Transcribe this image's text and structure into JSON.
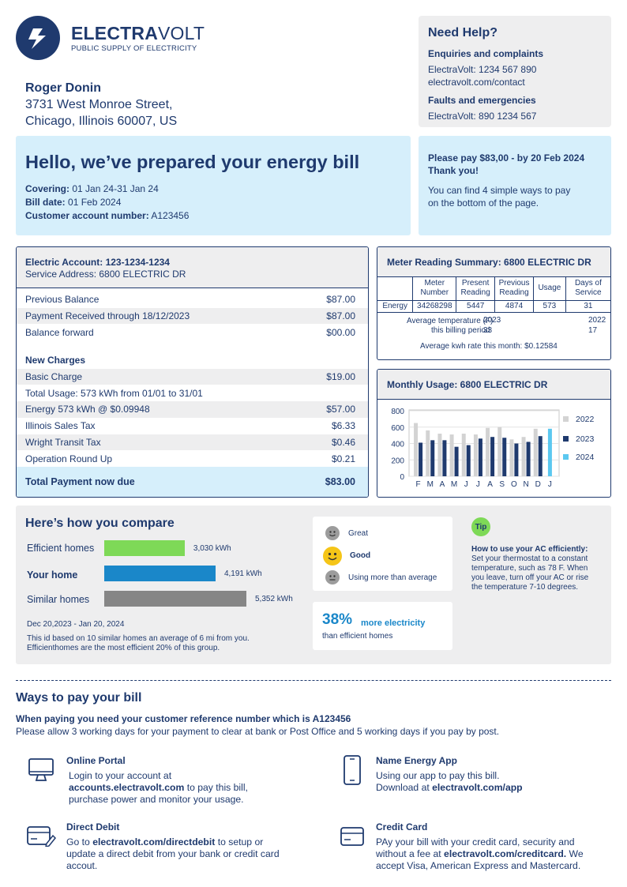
{
  "brand": {
    "name_bold": "ELECTRA",
    "name_light": "VOLT",
    "tagline": "PUBLIC SUPPLY OF ELECTRICITY"
  },
  "help": {
    "title": "Need Help?",
    "enq_heading": "Enquiries and complaints",
    "enq_phone": "ElectraVolt: 1234 567 890",
    "enq_web": "electravolt.com/contact",
    "faults_heading": "Faults and emergencies",
    "faults_phone": "ElectraVolt: 890 1234 567"
  },
  "customer": {
    "name": "Roger Donin",
    "street": "3731 West Monroe Street,",
    "city": "Chicago, Illinois 60007, US"
  },
  "hello": {
    "title": "Hello, we’ve prepared your energy bill",
    "covering_label": "Covering:",
    "covering": "01 Jan 24-31 Jan 24",
    "billdate_label": "Bill date:",
    "billdate": "01 Feb 2024",
    "account_label": "Customer account number:",
    "account": "A123456"
  },
  "pay": {
    "line1": "Please pay $83,00 - by 20 Feb 2024",
    "line2": "Thank you!",
    "line3": "You can find 4 simple ways to pay",
    "line4": "on the bottom of the page."
  },
  "account": {
    "title": "Electric Account: 123-1234-1234",
    "service": "Service Address: 6800 ELECTRIC DR",
    "rows": [
      {
        "label": "Previous Balance",
        "value": "$87.00"
      },
      {
        "label": "Payment Received through  18/12/2023",
        "value": "$87.00"
      },
      {
        "label": "Balance forward",
        "value": "$00.00"
      }
    ],
    "new_charges": "New Charges",
    "charges": [
      {
        "label": "Basic Charge",
        "value": "$19.00"
      },
      {
        "label": "Total Usage: 573 kWh from 01/01 to 31/01",
        "value": ""
      },
      {
        "label": "Energy 573 kWh @ $0.09948",
        "value": "$57.00"
      },
      {
        "label": "Illinois Sales Tax",
        "value": "$6.33"
      },
      {
        "label": "Wright Transit Tax",
        "value": "$0.46"
      },
      {
        "label": "Operation Round Up",
        "value": "$0.21"
      }
    ],
    "total_label": "Total Payment now due",
    "total_value": "$83.00"
  },
  "meter": {
    "title": "Meter Reading Summary: 6800 ELECTRIC DR",
    "headers": [
      "Meter Number",
      "Present Reading",
      "Previous Reading",
      "Usage",
      "Days of Service"
    ],
    "row_label": "Energy",
    "row": [
      "34268298",
      "5447",
      "4874",
      "573",
      "31"
    ],
    "temp_label": "Average temperature (F)",
    "period_label": "this billing period",
    "y1": "2023",
    "y1_temp": "33",
    "y2": "2022",
    "y2_temp": "17",
    "rate": "Average kwh rate this month: $0.12584"
  },
  "monthly": {
    "title": "Monthly Usage: 6800 ELECTRIC DR"
  },
  "chart_data": {
    "type": "bar",
    "categories": [
      "F",
      "M",
      "A",
      "M",
      "J",
      "J",
      "A",
      "S",
      "O",
      "N",
      "D",
      "J"
    ],
    "yticks": [
      "800",
      "600",
      "400",
      "200",
      "0"
    ],
    "ylim": [
      0,
      800
    ],
    "series": [
      {
        "name": "2022",
        "color": "#d3d3d3",
        "values": [
          650,
          560,
          520,
          510,
          520,
          510,
          590,
          600,
          450,
          480,
          580,
          0
        ]
      },
      {
        "name": "2023",
        "color": "#1f3a6e",
        "values": [
          410,
          440,
          440,
          360,
          380,
          460,
          480,
          470,
          400,
          420,
          490,
          0
        ]
      },
      {
        "name": "2024",
        "color": "#5bc8f0",
        "values": [
          0,
          0,
          0,
          0,
          0,
          0,
          0,
          0,
          0,
          0,
          0,
          580
        ]
      }
    ]
  },
  "compare": {
    "title": "Here’s how you compare",
    "rows": [
      {
        "label": "Efficient homes",
        "value": "3,030 kWh",
        "kwh": 3030,
        "color": "#7ed957"
      },
      {
        "label": "Your home",
        "value": "4,191 kWh",
        "kwh": 4191,
        "color": "#1a87c9"
      },
      {
        "label": "Similar homes",
        "value": "5,352 kWh",
        "kwh": 5352,
        "color": "#868686"
      }
    ],
    "period": "Dec 20,2023 - Jan 20, 2024",
    "note1": "This id based on 10 similar homes an average of 6 mi from you.",
    "note2": "Efficienthomes are the most efficient 20% of this group.",
    "rating_great": "Great",
    "rating_good": "Good",
    "rating_more": "Using more than average",
    "pct": "38%",
    "pct_text": "more electricity",
    "pct_sub": "than efficient homes",
    "tip_badge": "Tip",
    "tip_title": "How to use your AC efficiently:",
    "tip_text": "Set your thermostat to a constant temperature, such as 78 F. When you  leave, turn off your AC or rise the temperature 7-10 degrees."
  },
  "ways": {
    "title": "Ways to pay your bill",
    "sub1": "When paying you need your customer reference number which is A123456",
    "sub2": "Please allow 3 working days for your payment to clear at bank or Post Office and 5 working days if you pay by post.",
    "online_title": "Online Portal",
    "online_1": "Login to your account at",
    "online_link": "accounts.electravolt.com",
    "online_2": " to pay this bill,",
    "online_3": "purchase power and monitor your usage.",
    "app_title": "Name Energy App",
    "app_1": "Using our app to pay this bill.",
    "app_2": "Download at ",
    "app_link": "electravolt.com/app",
    "dd_title": "Direct Debit",
    "dd_1": "Go to ",
    "dd_link": "electravolt.com/directdebit",
    "dd_2": " to setup or update a direct debit from your bank or credit card accout.",
    "cc_title": "Credit Card",
    "cc_1": "PAy your bill with your credit card, security and without a fee at ",
    "cc_link": "electravolt.com/creditcard.",
    "cc_2": " We accept Visa, American Express and Mastercard."
  }
}
